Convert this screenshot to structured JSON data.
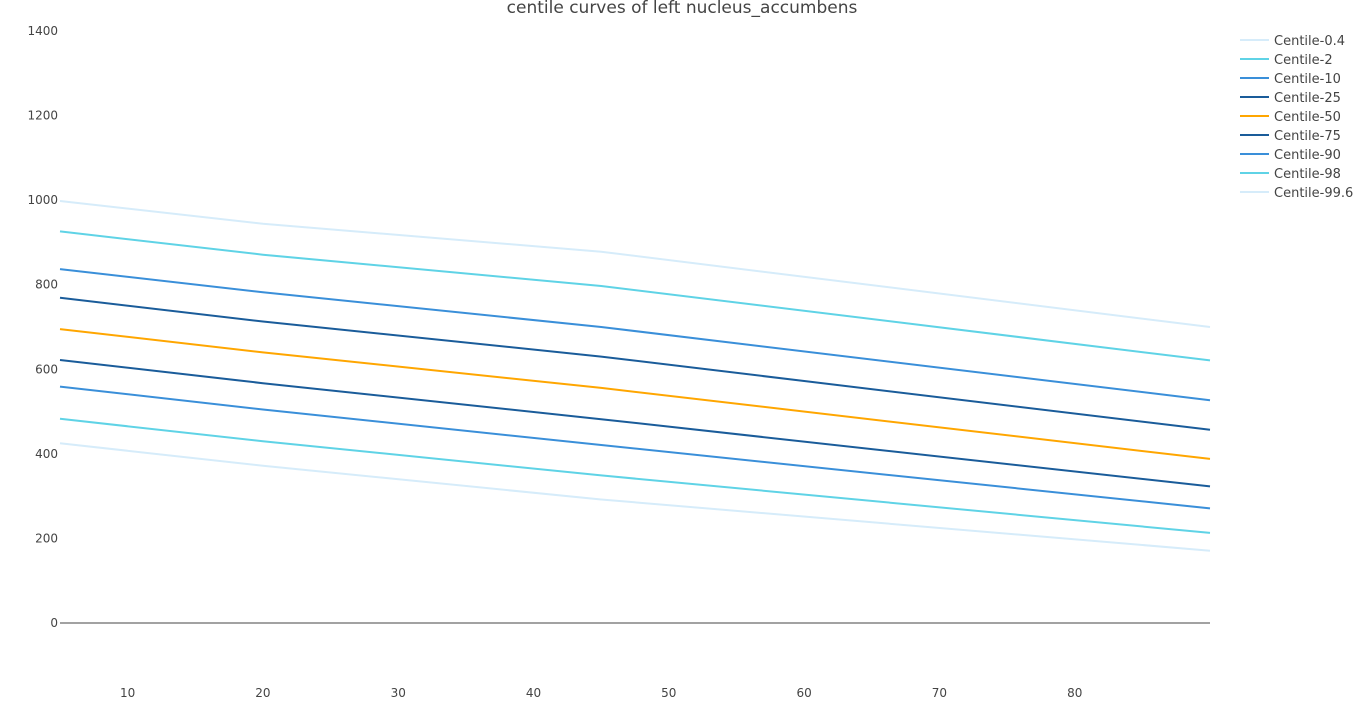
{
  "chart_data": {
    "type": "line",
    "title": "centile curves of left nucleus_accumbens",
    "xlabel": "",
    "ylabel": "",
    "xlim": [
      5,
      90
    ],
    "ylim": [
      0,
      1400
    ],
    "x_ticks": [
      10,
      20,
      30,
      40,
      50,
      60,
      70,
      80
    ],
    "y_ticks": [
      0,
      200,
      400,
      600,
      800,
      1000,
      1200,
      1400
    ],
    "grid": false,
    "legend": "right",
    "x": [
      5,
      20,
      45,
      90
    ],
    "series": [
      {
        "name": "Centile-0.4",
        "color": "#d6ecfa",
        "values": [
          425,
          372,
          292,
          171
        ]
      },
      {
        "name": "Centile-2",
        "color": "#5fd3e6",
        "values": [
          483,
          430,
          349,
          213
        ]
      },
      {
        "name": "Centile-10",
        "color": "#3a8fd9",
        "values": [
          559,
          505,
          421,
          271
        ]
      },
      {
        "name": "Centile-25",
        "color": "#1a5c9a",
        "values": [
          622,
          567,
          482,
          323
        ]
      },
      {
        "name": "Centile-50",
        "color": "#ffa600",
        "values": [
          695,
          640,
          556,
          388
        ]
      },
      {
        "name": "Centile-75",
        "color": "#1a5c9a",
        "values": [
          769,
          713,
          630,
          457
        ]
      },
      {
        "name": "Centile-90",
        "color": "#3a8fd9",
        "values": [
          837,
          782,
          700,
          527
        ]
      },
      {
        "name": "Centile-98",
        "color": "#5fd3e6",
        "values": [
          926,
          871,
          797,
          621
        ]
      },
      {
        "name": "Centile-99.6",
        "color": "#d6ecfa",
        "values": [
          998,
          944,
          878,
          700
        ]
      }
    ]
  }
}
